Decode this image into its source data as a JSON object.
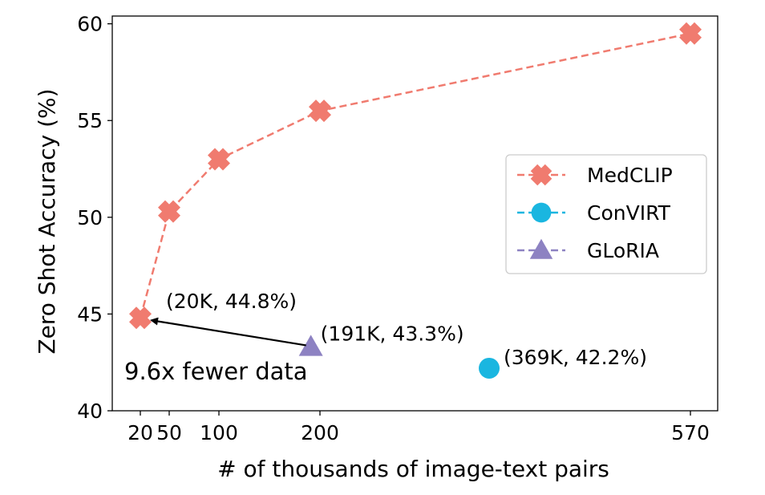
{
  "chart_data": {
    "type": "scatter",
    "xlabel": "# of thousands of image-text pairs",
    "ylabel": "Zero Shot Accuracy (%)",
    "xticks": [
      20,
      50,
      100,
      200,
      570
    ],
    "xtick_labels": [
      "20",
      "50",
      "100",
      "200",
      "570"
    ],
    "yticks": [
      40,
      45,
      50,
      55,
      60
    ],
    "ylim": [
      40,
      60.4
    ],
    "grid": false,
    "legend_position": "center-right",
    "series": [
      {
        "name": "MedCLIP",
        "marker": "x-cross",
        "line": "dashed",
        "color": "#f07b6f",
        "points": [
          {
            "x": 20,
            "y": 44.8
          },
          {
            "x": 50,
            "y": 50.3
          },
          {
            "x": 100,
            "y": 53.0
          },
          {
            "x": 200,
            "y": 55.5
          },
          {
            "x": 570,
            "y": 59.5
          }
        ]
      },
      {
        "name": "ConVIRT",
        "marker": "circle",
        "line": "dashed",
        "color": "#1ab6e0",
        "points": [
          {
            "x": 369,
            "y": 42.2
          }
        ]
      },
      {
        "name": "GLoRIA",
        "marker": "triangle",
        "line": "dashed",
        "color": "#8d82c2",
        "points": [
          {
            "x": 191,
            "y": 43.3
          }
        ]
      }
    ],
    "annotations": [
      {
        "text": "(20K, 44.8%)",
        "x": 20,
        "y": 44.8
      },
      {
        "text": "(191K, 43.3%)",
        "x": 191,
        "y": 43.3
      },
      {
        "text": "(369K, 42.2%)",
        "x": 369,
        "y": 42.2
      },
      {
        "text": "9.6x fewer data",
        "x": 20,
        "y": 44.8
      }
    ],
    "arrow": {
      "from": {
        "x": 191,
        "y": 43.3
      },
      "to": {
        "x": 20,
        "y": 44.8
      }
    }
  }
}
